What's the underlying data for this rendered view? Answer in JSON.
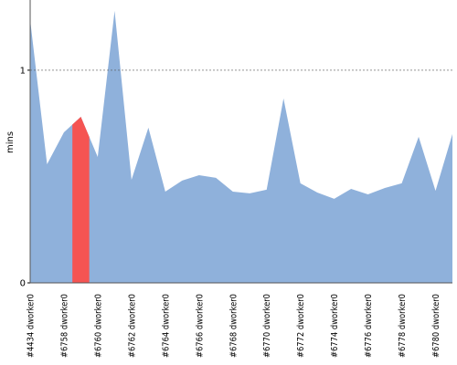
{
  "chart_data": {
    "type": "area",
    "y_label": "mins",
    "categories": [
      "#4434 dworker0",
      null,
      "#6758 dworker0",
      null,
      "#6760 dworker0",
      null,
      "#6762 dworker0",
      null,
      "#6764 dworker0",
      null,
      "#6766 dworker0",
      null,
      "#6768 dworker0",
      null,
      "#6770 dworker0",
      null,
      "#6772 dworker0",
      null,
      "#6774 dworker0",
      null,
      "#6776 dworker0",
      null,
      "#6778 dworker0",
      null,
      "#6780 dworker0",
      null
    ],
    "series": [
      {
        "color": "#8fb1db",
        "values": [
          1.236,
          0.558,
          0.708,
          0.781,
          0.592,
          1.279,
          0.485,
          0.73,
          0.429,
          0.481,
          0.506,
          0.494,
          0.429,
          0.421,
          0.438,
          0.867,
          0.468,
          0.425,
          0.395,
          0.442,
          0.416,
          0.446,
          0.468,
          0.687,
          0.433,
          0.7
        ]
      }
    ],
    "highlight": 3,
    "highlight_color": "#f55452",
    "ylim": [
      0,
      1.33
    ],
    "yticks": [
      0,
      1
    ],
    "grid": true
  }
}
